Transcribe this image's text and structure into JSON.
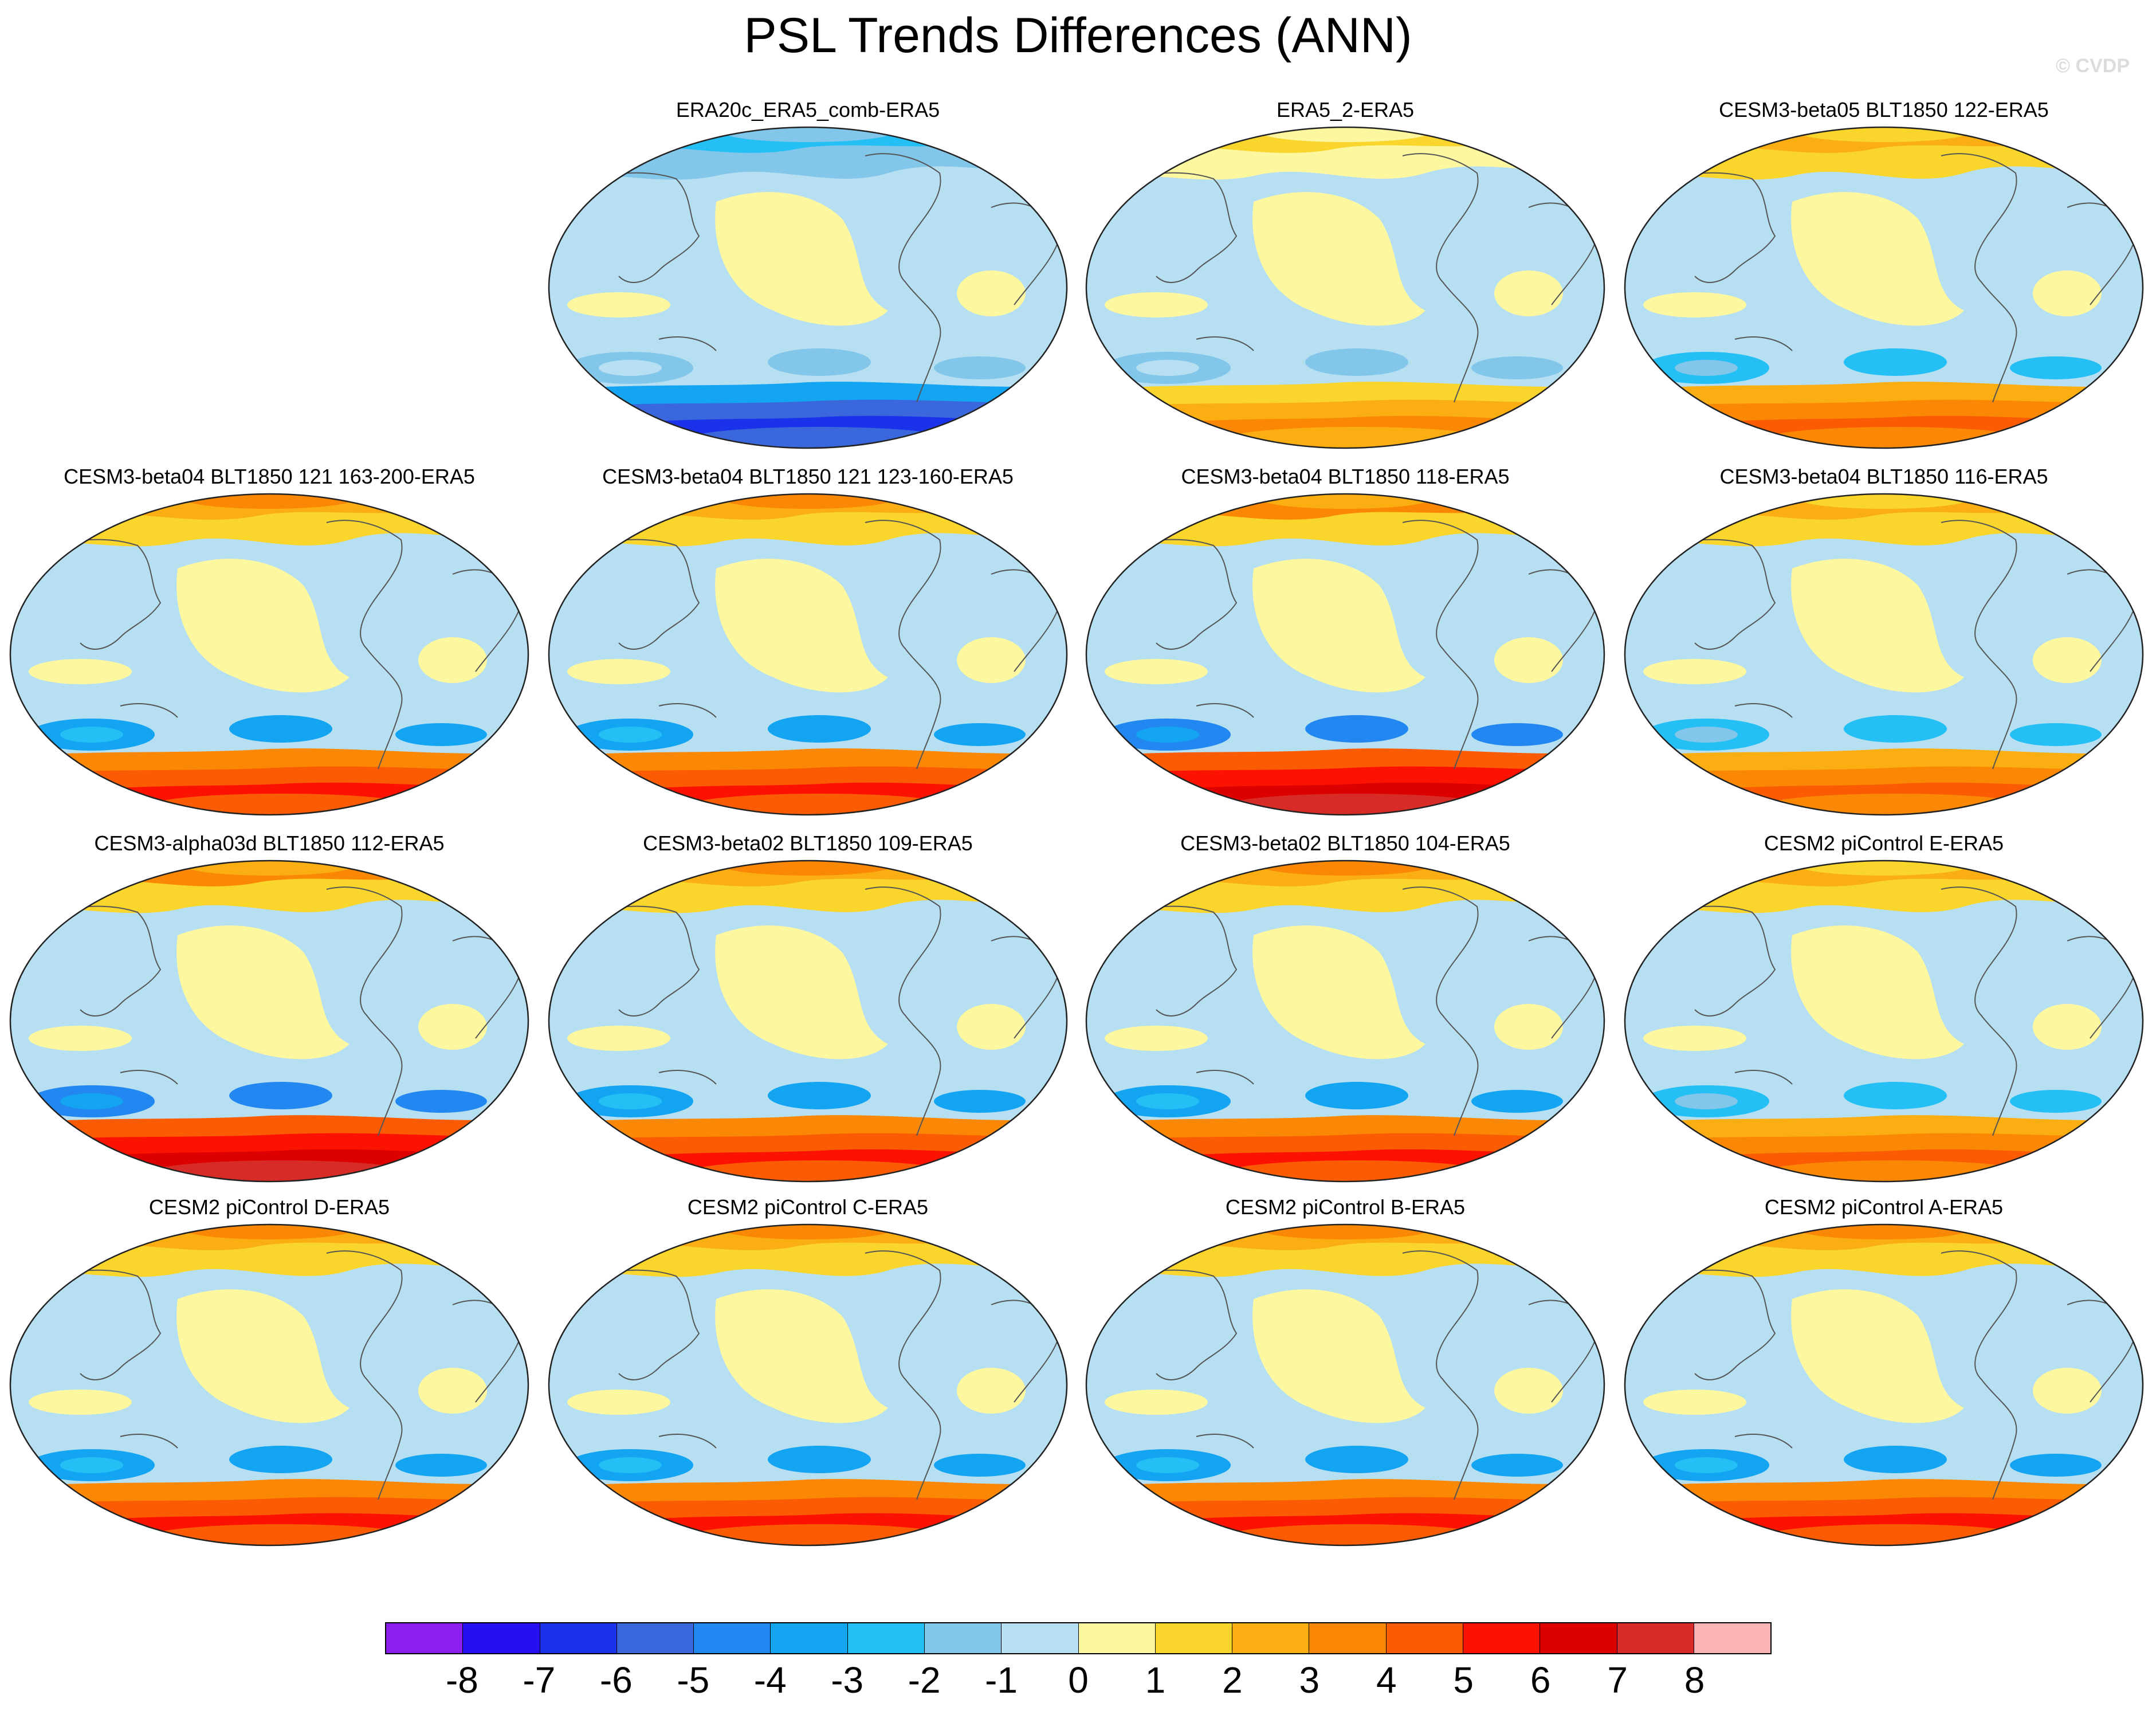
{
  "title": "PSL Trends Differences (ANN)",
  "watermark": "© CVDP",
  "panels": [
    {
      "id": "p1",
      "label": "ERA20c_ERA5_comb-ERA5",
      "pattern": "blue"
    },
    {
      "id": "p2",
      "label": "ERA5_2-ERA5",
      "pattern": "yellow"
    },
    {
      "id": "p3",
      "label": "CESM3-beta05 BLT1850 122-ERA5",
      "pattern": "warm"
    },
    {
      "id": "p4",
      "label": "CESM3-beta04 BLT1850 121 163-200-ERA5",
      "pattern": "hot"
    },
    {
      "id": "p5",
      "label": "CESM3-beta04 BLT1850 121 123-160-ERA5",
      "pattern": "hot"
    },
    {
      "id": "p6",
      "label": "CESM3-beta04 BLT1850 118-ERA5",
      "pattern": "hottest"
    },
    {
      "id": "p7",
      "label": "CESM3-beta04 BLT1850 116-ERA5",
      "pattern": "warm"
    },
    {
      "id": "p8",
      "label": "CESM3-alpha03d BLT1850 112-ERA5",
      "pattern": "hottest"
    },
    {
      "id": "p9",
      "label": "CESM3-beta02 BLT1850 109-ERA5",
      "pattern": "hot"
    },
    {
      "id": "p10",
      "label": "CESM3-beta02 BLT1850 104-ERA5",
      "pattern": "hot"
    },
    {
      "id": "p11",
      "label": "CESM2 piControl E-ERA5",
      "pattern": "warm"
    },
    {
      "id": "p12",
      "label": "CESM2 piControl D-ERA5",
      "pattern": "hot"
    },
    {
      "id": "p13",
      "label": "CESM2 piControl C-ERA5",
      "pattern": "hot"
    },
    {
      "id": "p14",
      "label": "CESM2 piControl B-ERA5",
      "pattern": "hot"
    },
    {
      "id": "p15",
      "label": "CESM2 piControl A-ERA5",
      "pattern": "hot"
    }
  ],
  "colorbar": {
    "colors": [
      "#8a1ff0",
      "#2410f2",
      "#1a33ea",
      "#3a68dc",
      "#2287f0",
      "#13a4f2",
      "#23bff5",
      "#82c6ea",
      "#b7dff2",
      "#fdf7a0",
      "#fad52c",
      "#fbae11",
      "#fb8804",
      "#fb5c03",
      "#fc1200",
      "#dc0000",
      "#d62b26",
      "#fcb5b7"
    ],
    "labels": [
      "-8",
      "-7",
      "-6",
      "-5",
      "-4",
      "-3",
      "-2",
      "-1",
      "0",
      "1",
      "2",
      "3",
      "4",
      "5",
      "6",
      "7",
      "8"
    ]
  }
}
